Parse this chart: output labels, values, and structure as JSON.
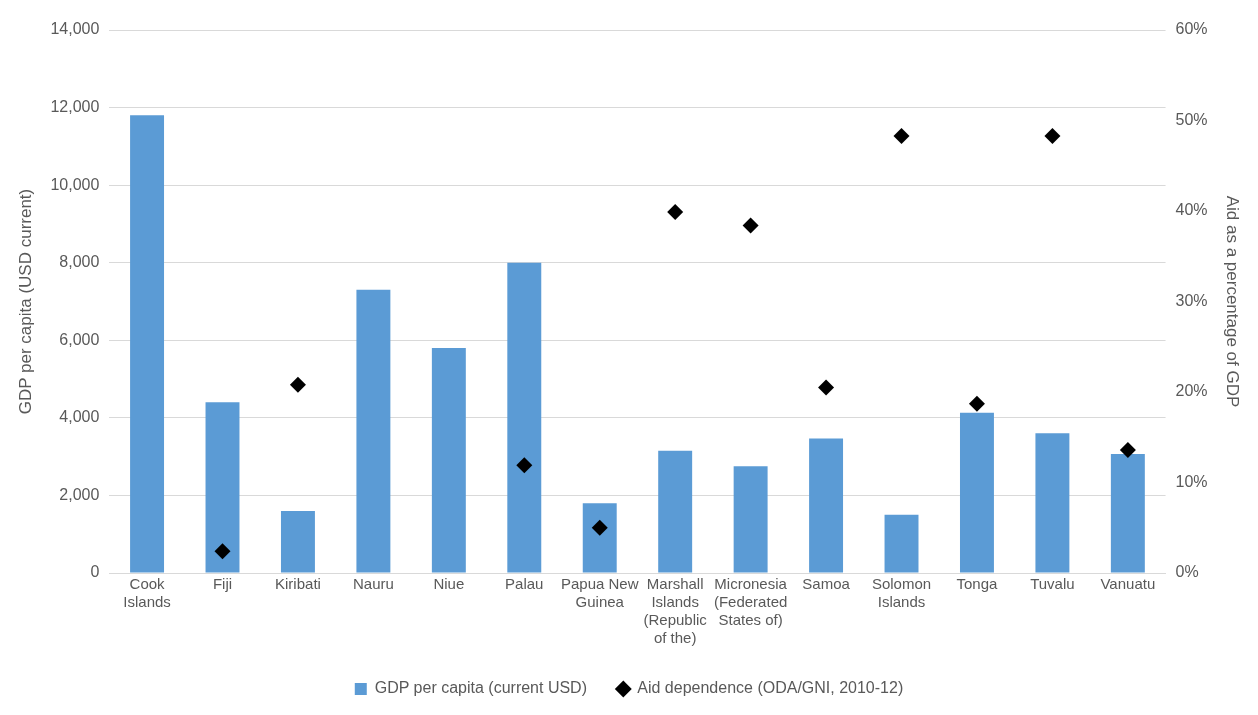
{
  "chart_data": {
    "type": "bar",
    "ylabel": "GDP per capita (USD current)",
    "y2label": "Aid as a percentage of GDP",
    "categories": [
      "Cook Islands",
      "Fiji",
      "Kiribati",
      "Nauru",
      "Niue",
      "Palau",
      "Papua New Guinea",
      "Marshall Islands (Republic of the)",
      "Micronesia (Federated States of)",
      "Samoa",
      "Solomon Islands",
      "Tonga",
      "Tuvalu",
      "Vanuatu"
    ],
    "series": [
      {
        "name": "GDP per capita (current USD)",
        "color": "#5b9bd5",
        "values": [
          11800,
          4400,
          1600,
          7300,
          5800,
          8000,
          1800,
          3150,
          2750,
          3470,
          1500,
          4130,
          3600,
          3070
        ]
      },
      {
        "name": "Aid dependence (ODA/GNI, 2010-12)",
        "type": "scatter",
        "axis": "y2",
        "color": "#000000",
        "marker": "diamond",
        "values": [
          null,
          2.4,
          20.8,
          null,
          null,
          11.9,
          5.0,
          39.9,
          38.4,
          20.5,
          48.3,
          18.7,
          48.3,
          13.6
        ]
      }
    ],
    "ylim": [
      0,
      14000
    ],
    "yticks": [
      {
        "value": 0,
        "label": "0"
      },
      {
        "value": 2000,
        "label": "2,000"
      },
      {
        "value": 4000,
        "label": "4,000"
      },
      {
        "value": 6000,
        "label": "6,000"
      },
      {
        "value": 8000,
        "label": "8,000"
      },
      {
        "value": 10000,
        "label": "10,000"
      },
      {
        "value": 12000,
        "label": "12,000"
      },
      {
        "value": 14000,
        "label": "14,000"
      }
    ],
    "y2lim": [
      0,
      60
    ],
    "y2ticks": [
      {
        "value": 0,
        "label": "0%"
      },
      {
        "value": 10,
        "label": "10%"
      },
      {
        "value": 20,
        "label": "20%"
      },
      {
        "value": 30,
        "label": "30%"
      },
      {
        "value": 40,
        "label": "40%"
      },
      {
        "value": 50,
        "label": "50%"
      },
      {
        "value": 60,
        "label": "60%"
      }
    ],
    "grid": "y",
    "legend": "bottom"
  }
}
